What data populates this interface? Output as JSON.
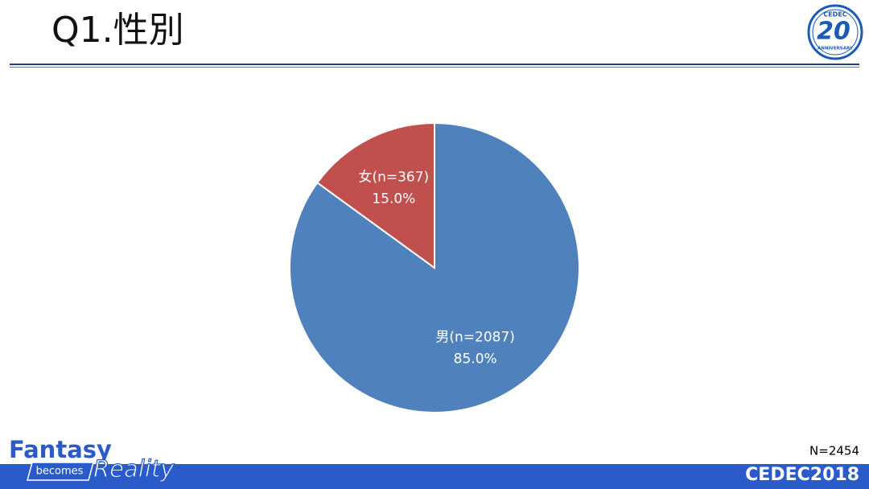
{
  "header": {
    "title": "Q1.性別"
  },
  "logo": {
    "brand": "CEDEC",
    "number": "20",
    "caption": "ANNIVERSARY"
  },
  "chart_data": {
    "type": "pie",
    "categories": [
      "男(n=2087)",
      "女(n=367)"
    ],
    "values": [
      85.0,
      15.0
    ],
    "value_labels": [
      "85.0%",
      "15.0%"
    ],
    "colors": [
      "#4f81bd",
      "#c0504d"
    ],
    "note": "N=2454"
  },
  "footer": {
    "tagline_1": "Fantasy",
    "tagline_2": "becomes",
    "tagline_3": "Reality",
    "event": "CEDEC2018"
  }
}
